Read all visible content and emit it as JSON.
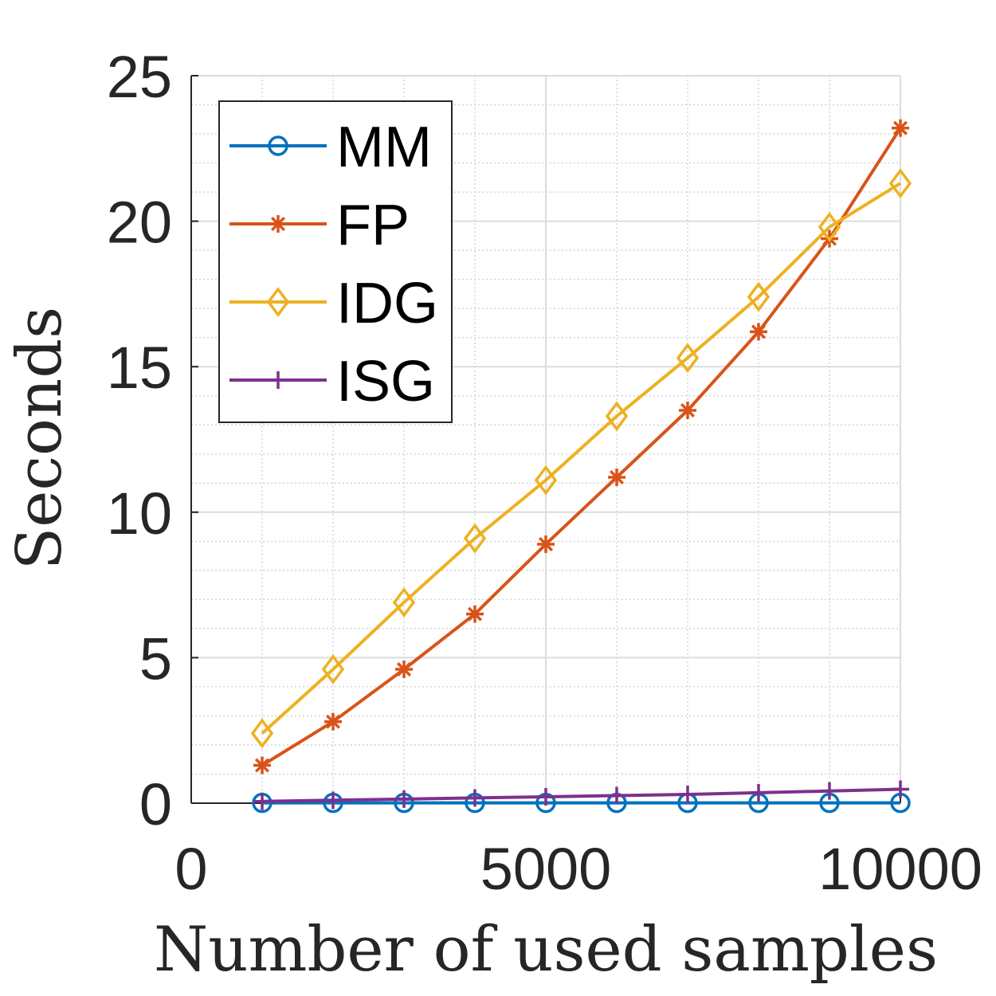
{
  "chart_data": {
    "type": "line",
    "title": "",
    "xlabel": "Number of used samples",
    "ylabel": "Seconds",
    "xlim": [
      0,
      10000
    ],
    "ylim": [
      0,
      25
    ],
    "xticks": [
      0,
      5000,
      10000
    ],
    "xtick_labels": [
      "0",
      "5000",
      "10000"
    ],
    "yticks": [
      0,
      5,
      10,
      15,
      20,
      25
    ],
    "ytick_labels": [
      "0",
      "5",
      "10",
      "15",
      "20",
      "25"
    ],
    "grid": true,
    "minor_grid": true,
    "legend_position": "top-left",
    "x": [
      1000,
      2000,
      3000,
      4000,
      5000,
      6000,
      7000,
      8000,
      9000,
      10000
    ],
    "series": [
      {
        "name": "MM",
        "color": "#0072BD",
        "marker": "circle",
        "values": [
          0.01,
          0.01,
          0.01,
          0.01,
          0.01,
          0.01,
          0.01,
          0.01,
          0.01,
          0.01
        ]
      },
      {
        "name": "FP",
        "color": "#D95319",
        "marker": "asterisk",
        "values": [
          1.3,
          2.8,
          4.6,
          6.5,
          8.9,
          11.2,
          13.5,
          16.2,
          19.4,
          23.2
        ]
      },
      {
        "name": "IDG",
        "color": "#EDB120",
        "marker": "diamond",
        "values": [
          2.4,
          4.6,
          6.9,
          9.1,
          11.1,
          13.3,
          15.3,
          17.4,
          19.8,
          21.3
        ]
      },
      {
        "name": "ISG",
        "color": "#7E2F8E",
        "marker": "plus",
        "values": [
          0.06,
          0.1,
          0.14,
          0.18,
          0.22,
          0.26,
          0.3,
          0.36,
          0.42,
          0.48
        ]
      }
    ]
  }
}
